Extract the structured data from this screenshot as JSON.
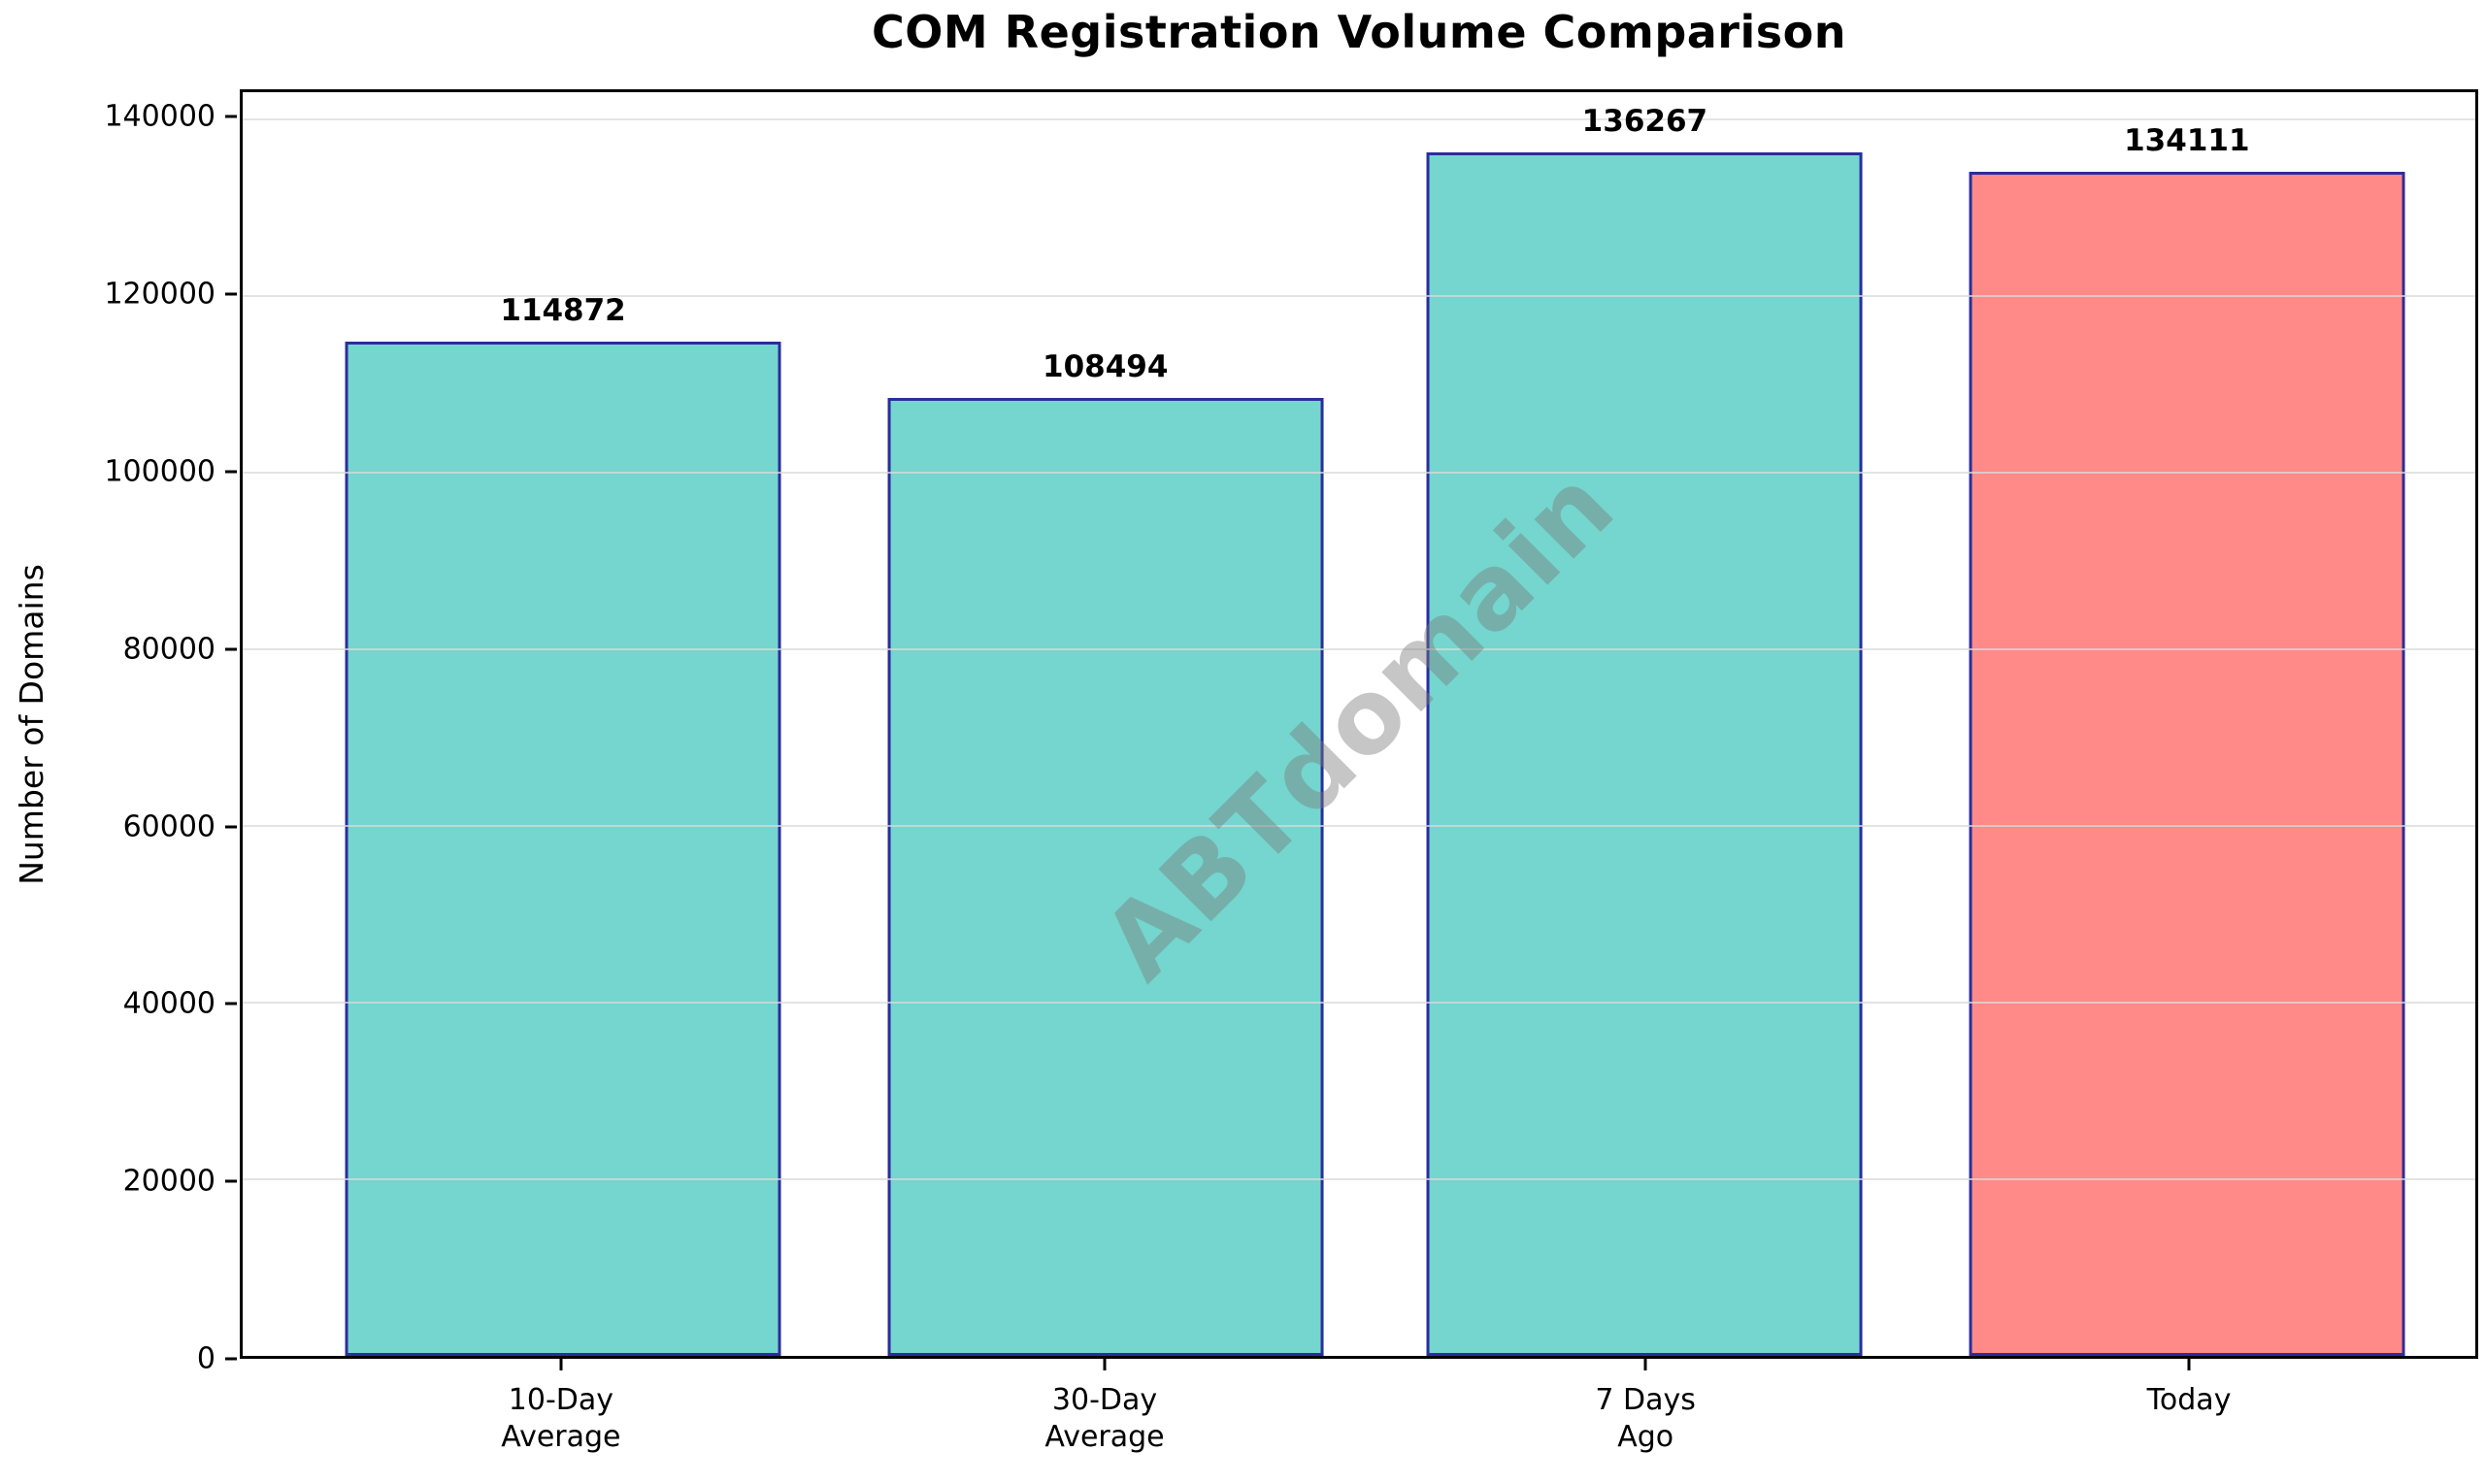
{
  "chart_data": {
    "type": "bar",
    "title": "COM Registration Volume Comparison",
    "ylabel": "Number of Domains",
    "xlabel": "",
    "categories": [
      [
        "10-Day",
        "Average"
      ],
      [
        "30-Day",
        "Average"
      ],
      [
        "7 Days",
        "Ago"
      ],
      [
        "Today"
      ]
    ],
    "values": [
      114872,
      108494,
      136267,
      134111
    ],
    "value_labels": [
      "114872",
      "108494",
      "136267",
      "134111"
    ],
    "bar_colors": [
      "#74D6CE",
      "#74D6CE",
      "#74D6CE",
      "#FF8A88"
    ],
    "bar_edge_color": "#2B2D9E",
    "yticks": [
      0,
      20000,
      40000,
      60000,
      80000,
      100000,
      120000,
      140000
    ],
    "ytick_labels": [
      "0",
      "20000",
      "40000",
      "60000",
      "80000",
      "100000",
      "120000",
      "140000"
    ],
    "ylim": [
      0,
      143080
    ],
    "grid": true,
    "legend": "none",
    "watermark": "ABTdomain",
    "colors": {
      "teal_fill": "#74D6CE",
      "salmon_fill": "#FF8A88",
      "bar_edge": "#2B2D9E",
      "gridline": "#D9D9D9",
      "spine": "#000000",
      "watermark_gray": "#7A7A7A"
    }
  }
}
